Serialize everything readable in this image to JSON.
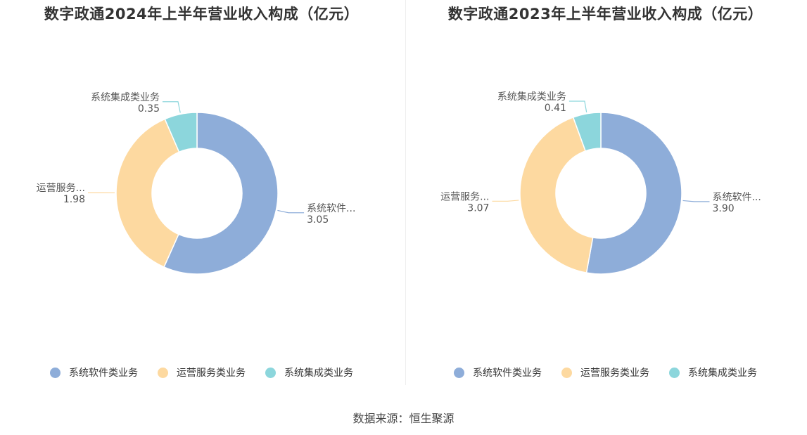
{
  "source": "数据来源：恒生聚源",
  "colors": {
    "系统软件类业务": "#8eadd9",
    "运营服务类业务": "#fdd9a0",
    "系统集成类业务": "#8cd6dc"
  },
  "chart_data": [
    {
      "type": "pie",
      "title": "数字政通2024年上半年营业收入构成（亿元）",
      "legend": [
        "系统软件类业务",
        "运营服务类业务",
        "系统集成类业务"
      ],
      "legend_position": "bottom",
      "slices": [
        {
          "label": "系统软件类业务",
          "display_label": "系统软件...",
          "value": 3.05,
          "value_text": "3.05",
          "color": "#8eadd9"
        },
        {
          "label": "运营服务类业务",
          "display_label": "运营服务...",
          "value": 1.98,
          "value_text": "1.98",
          "color": "#fdd9a0"
        },
        {
          "label": "系统集成类业务",
          "display_label": "系统集成类业务",
          "value": 0.35,
          "value_text": "0.35",
          "color": "#8cd6dc"
        }
      ]
    },
    {
      "type": "pie",
      "title": "数字政通2023年上半年营业收入构成（亿元）",
      "legend": [
        "系统软件类业务",
        "运营服务类业务",
        "系统集成类业务"
      ],
      "legend_position": "bottom",
      "slices": [
        {
          "label": "系统软件类业务",
          "display_label": "系统软件...",
          "value": 3.9,
          "value_text": "3.90",
          "color": "#8eadd9"
        },
        {
          "label": "运营服务类业务",
          "display_label": "运营服务...",
          "value": 3.07,
          "value_text": "3.07",
          "color": "#fdd9a0"
        },
        {
          "label": "系统集成类业务",
          "display_label": "系统集成类业务",
          "value": 0.41,
          "value_text": "0.41",
          "color": "#8cd6dc"
        }
      ]
    }
  ]
}
